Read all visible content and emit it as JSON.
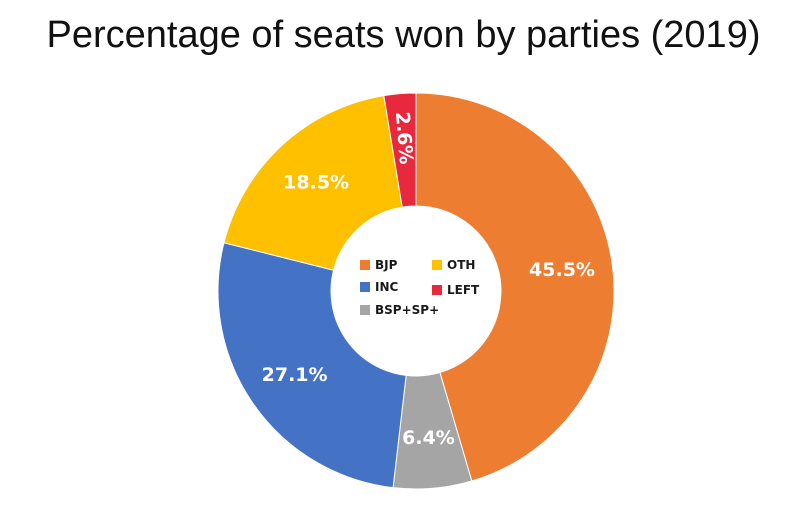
{
  "chart_data": {
    "type": "pie",
    "style": "donut",
    "title": "Percentage of seats won by parties (2019)",
    "slices": [
      {
        "label": "BJP",
        "value": 45.5,
        "value_label": "45.5%",
        "color": "#ED7D31"
      },
      {
        "label": "BSP+SP+",
        "value": 6.4,
        "value_label": "6.4%",
        "color": "#A5A5A5"
      },
      {
        "label": "INC",
        "value": 27.1,
        "value_label": "27.1%",
        "color": "#4472C4"
      },
      {
        "label": "OTH",
        "value": 18.5,
        "value_label": "18.5%",
        "color": "#FFC000"
      },
      {
        "label": "LEFT",
        "value": 2.6,
        "value_label": "2.6%",
        "color": "#E8283C"
      }
    ],
    "legend": {
      "placement": "center",
      "entries": [
        "BJP",
        "OTH",
        "INC",
        "LEFT",
        "BSP+SP+"
      ]
    }
  }
}
